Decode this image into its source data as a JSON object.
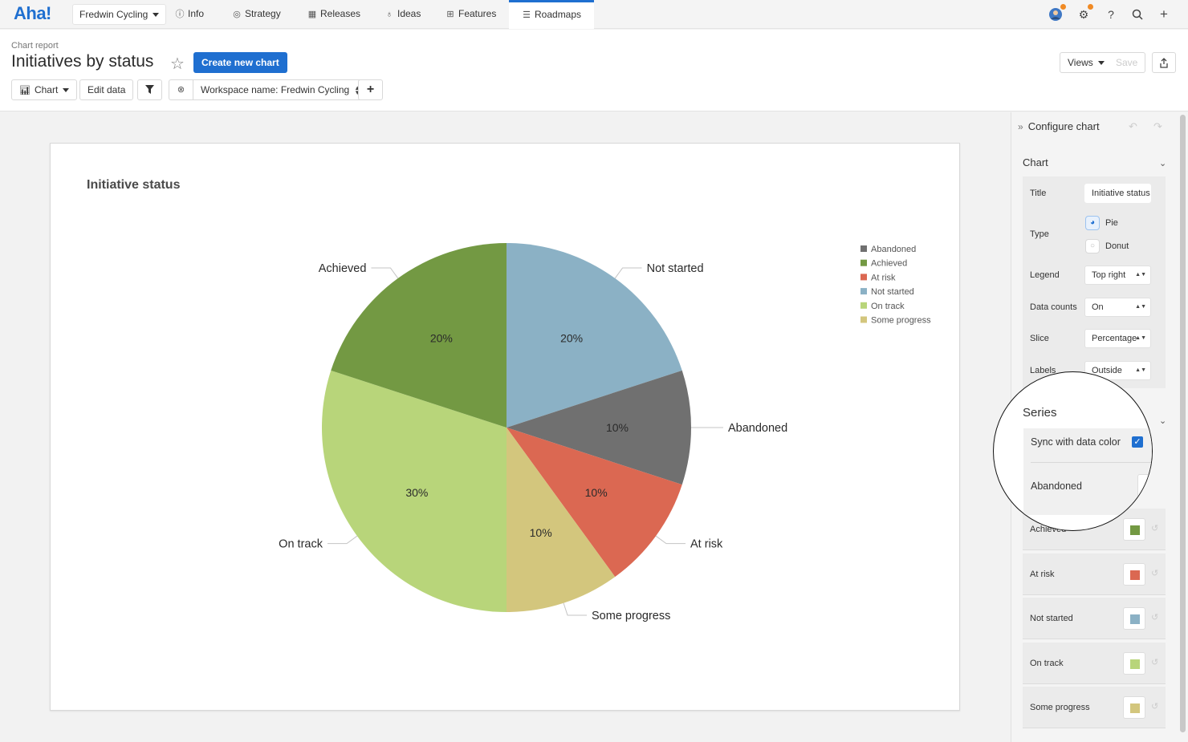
{
  "nav": {
    "logo": "Aha!",
    "workspace": "Fredwin Cycling",
    "tabs": [
      {
        "label": "Info",
        "icon": "info-icon"
      },
      {
        "label": "Strategy",
        "icon": "target-icon"
      },
      {
        "label": "Releases",
        "icon": "calendar-icon"
      },
      {
        "label": "Ideas",
        "icon": "lightbulb-icon"
      },
      {
        "label": "Features",
        "icon": "grid-icon"
      },
      {
        "label": "Roadmaps",
        "icon": "roadmap-icon",
        "active": true
      }
    ],
    "accent": "#1f6fd0",
    "notification_color": "#f08a24"
  },
  "header": {
    "breadcrumb": "Chart report",
    "title": "Initiatives by status",
    "create_button": "Create new chart",
    "views_button": "Views",
    "save_button": "Save"
  },
  "toolbar": {
    "chart_button": "Chart",
    "edit_data_button": "Edit data",
    "workspace_filter": "Workspace name: Fredwin Cycling",
    "add_button": "+"
  },
  "chart_data": {
    "type": "pie",
    "title": "Initiative status",
    "legend_position": "top-right",
    "labels_position": "outside",
    "slice_display": "percentage",
    "slices": [
      {
        "name": "Not started",
        "value": 20,
        "label": "20%",
        "color": "#8bb1c5"
      },
      {
        "name": "Abandoned",
        "value": 10,
        "label": "10%",
        "color": "#707070"
      },
      {
        "name": "At risk",
        "value": 10,
        "label": "10%",
        "color": "#db6852"
      },
      {
        "name": "Some progress",
        "value": 10,
        "label": "10%",
        "color": "#d3c67d"
      },
      {
        "name": "On track",
        "value": 30,
        "label": "30%",
        "color": "#b8d57a"
      },
      {
        "name": "Achieved",
        "value": 20,
        "label": "20%",
        "color": "#739943"
      }
    ],
    "legend": [
      {
        "name": "Abandoned",
        "color": "#707070"
      },
      {
        "name": "Achieved",
        "color": "#739943"
      },
      {
        "name": "At risk",
        "color": "#db6852"
      },
      {
        "name": "Not started",
        "color": "#8bb1c5"
      },
      {
        "name": "On track",
        "color": "#b8d57a"
      },
      {
        "name": "Some progress",
        "color": "#d3c67d"
      }
    ]
  },
  "config": {
    "heading": "Configure chart",
    "chart_section": {
      "title": "Chart",
      "title_label": "Title",
      "title_value": "Initiative status",
      "type_label": "Type",
      "type_options": [
        "Pie",
        "Donut"
      ],
      "type_selected": "Pie",
      "legend_label": "Legend",
      "legend_value": "Top right",
      "data_counts_label": "Data counts",
      "data_counts_value": "On",
      "slice_label": "Slice",
      "slice_value": "Percentage",
      "labels_label": "Labels",
      "labels_value": "Outside"
    },
    "series_section": {
      "title": "Series",
      "sync_label": "Sync with data color",
      "sync_checked": true,
      "items": [
        {
          "name": "Abandoned",
          "color": "#707070"
        },
        {
          "name": "Achieved",
          "color": "#739943"
        },
        {
          "name": "At risk",
          "color": "#db6852"
        },
        {
          "name": "Not started",
          "color": "#8bb1c5"
        },
        {
          "name": "On track",
          "color": "#b8d57a"
        },
        {
          "name": "Some progress",
          "color": "#d3c67d"
        }
      ]
    }
  }
}
